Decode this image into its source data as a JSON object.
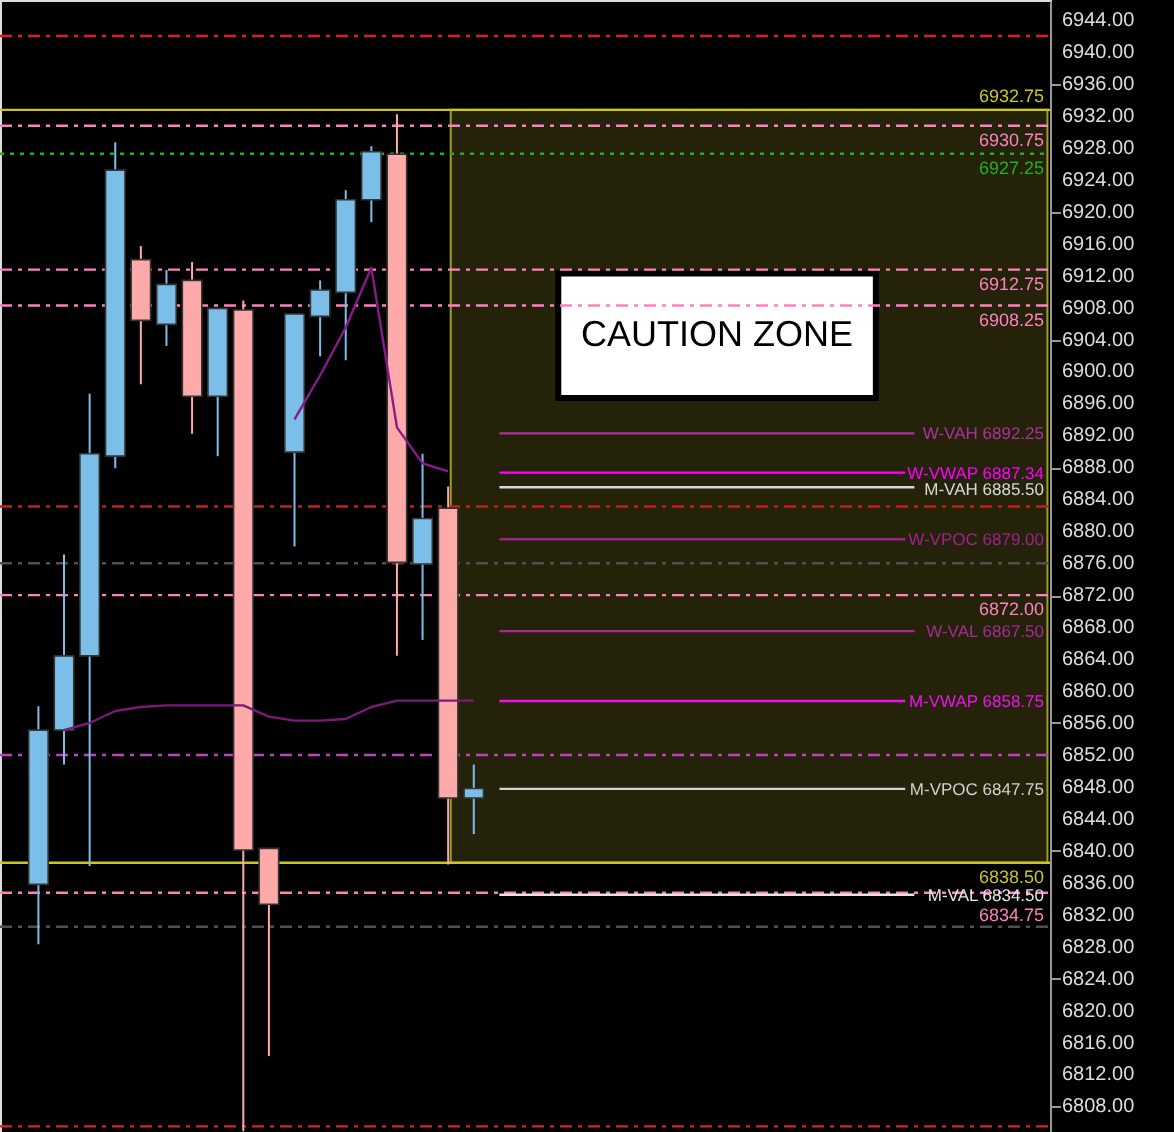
{
  "chart_data": {
    "type": "candlestick",
    "categories": [
      null,
      null,
      null,
      null,
      null,
      null,
      null,
      null,
      null,
      null,
      null,
      null,
      null,
      null,
      null,
      null,
      null,
      null,
      null,
      null,
      null,
      null,
      null,
      null,
      null,
      null,
      null,
      null,
      null,
      null,
      null,
      null,
      null,
      null,
      null,
      null,
      null,
      null,
      null,
      null,
      null
    ],
    "ohlc": [
      null,
      [
        6835.8,
        6858.1,
        6828.3,
        6855.1
      ],
      [
        6855.1,
        6877.1,
        6850.8,
        6864.4
      ],
      [
        6864.4,
        6897.2,
        6838.1,
        6889.7
      ],
      [
        6889.4,
        6928.7,
        6887.9,
        6925.2
      ],
      [
        6914.0,
        6915.7,
        6898.4,
        6906.4
      ],
      [
        6905.9,
        6912.7,
        6903.2,
        6910.9
      ],
      [
        6911.4,
        6913.7,
        6892.2,
        6896.9
      ],
      [
        6896.9,
        6907.9,
        6889.4,
        6907.9
      ],
      [
        6907.7,
        6908.9,
        6804.9,
        6840.1
      ],
      [
        6840.3,
        6840.3,
        6814.3,
        6833.3
      ],
      [
        6889.9,
        6907.2,
        6878.1,
        6907.2
      ],
      [
        6906.9,
        6911.4,
        6901.9,
        6910.2
      ],
      [
        6909.9,
        6922.7,
        6901.4,
        6921.5
      ],
      [
        6921.5,
        6928.2,
        6918.7,
        6927.5
      ],
      [
        6927.2,
        6932.2,
        6864.4,
        6876.1
      ],
      [
        6875.9,
        6889.7,
        6866.4,
        6881.6
      ],
      [
        6882.9,
        6885.6,
        6838.3,
        6846.6
      ],
      [
        6846.6,
        6850.8,
        6842.1,
        6847.8
      ],
      null,
      null,
      null,
      null,
      null,
      null,
      null,
      null,
      null,
      null,
      null,
      null,
      null,
      null,
      null,
      null,
      null,
      null,
      null,
      null,
      null,
      null
    ],
    "colors": [
      null,
      "#7bbfe8",
      "#7bbfe8",
      "#7bbfe8",
      "#7bbfe8",
      "#ffaaaa",
      "#7bbfe8",
      "#ffaaaa",
      "#7bbfe8",
      "#ffaaaa",
      "#ffaaaa",
      "#7bbfe8",
      "#7bbfe8",
      "#7bbfe8",
      "#7bbfe8",
      "#ffaaaa",
      "#7bbfe8",
      "#ffaaaa",
      "#7bbfe8",
      null,
      null,
      null,
      null,
      null,
      null,
      null,
      null,
      null,
      null,
      null,
      null,
      null,
      null,
      null,
      null,
      null,
      null,
      null,
      null,
      null,
      null
    ],
    "series": [
      {
        "type": "line",
        "color": "#7a1a7a",
        "values": [
          null,
          null,
          6855.1,
          6856.0,
          6857.5,
          6858.0,
          6858.2,
          6858.2,
          6858.2,
          6858.2,
          6856.8,
          6856.3,
          6856.3,
          6856.5,
          6858.0,
          6858.8,
          6858.8,
          6858.8,
          6858.8,
          null,
          null,
          null,
          null,
          null,
          null,
          null,
          null,
          null,
          null,
          null,
          null,
          null,
          null,
          null,
          null,
          null,
          null,
          null,
          null,
          null,
          null
        ]
      },
      {
        "type": "line",
        "color": "#8a1a8a",
        "values": [
          null,
          null,
          null,
          null,
          null,
          null,
          null,
          null,
          null,
          null,
          null,
          6894.0,
          6899.5,
          6905.5,
          6913.0,
          6893.0,
          6888.5,
          6887.5,
          null,
          null,
          null,
          null,
          null,
          null,
          null,
          null,
          null,
          null,
          null,
          null,
          null,
          null,
          null,
          null,
          null,
          null,
          null,
          null,
          null,
          null,
          null
        ]
      }
    ],
    "ylim": [
      6804.8,
      6946.5
    ],
    "yticks": [
      {
        "value": 6808,
        "label": "6808.00"
      },
      {
        "value": 6812,
        "label": "6812.00"
      },
      {
        "value": 6816,
        "label": "6816.00"
      },
      {
        "value": 6820,
        "label": "6820.00"
      },
      {
        "value": 6824,
        "label": "6824.00"
      },
      {
        "value": 6828,
        "label": "6828.00"
      },
      {
        "value": 6832,
        "label": "6832.00"
      },
      {
        "value": 6836,
        "label": "6836.00"
      },
      {
        "value": 6840,
        "label": "6840.00"
      },
      {
        "value": 6844,
        "label": "6844.00"
      },
      {
        "value": 6848,
        "label": "6848.00"
      },
      {
        "value": 6852,
        "label": "6852.00"
      },
      {
        "value": 6856,
        "label": "6856.00"
      },
      {
        "value": 6860,
        "label": "6860.00"
      },
      {
        "value": 6864,
        "label": "6864.00"
      },
      {
        "value": 6868,
        "label": "6868.00"
      },
      {
        "value": 6872,
        "label": "6872.00"
      },
      {
        "value": 6876,
        "label": "6876.00"
      },
      {
        "value": 6880,
        "label": "6880.00"
      },
      {
        "value": 6884,
        "label": "6884.00"
      },
      {
        "value": 6888,
        "label": "6888.00"
      },
      {
        "value": 6892,
        "label": "6892.00"
      },
      {
        "value": 6896,
        "label": "6896.00"
      },
      {
        "value": 6900,
        "label": "6900.00"
      },
      {
        "value": 6904,
        "label": "6904.00"
      },
      {
        "value": 6908,
        "label": "6908.00"
      },
      {
        "value": 6912,
        "label": "6912.00"
      },
      {
        "value": 6916,
        "label": "6916.00"
      },
      {
        "value": 6920,
        "label": "6920.00"
      },
      {
        "value": 6924,
        "label": "6924.00"
      },
      {
        "value": 6928,
        "label": "6928.00"
      },
      {
        "value": 6932,
        "label": "6932.00"
      },
      {
        "value": 6936,
        "label": "6936.00"
      },
      {
        "value": 6940,
        "label": "6940.00"
      },
      {
        "value": 6944,
        "label": "6944.00"
      }
    ],
    "tick_labels": "y",
    "grid": false,
    "bands": [
      {
        "axis": "y",
        "from": 6838.5,
        "to": 6932.75,
        "label": "CAUTION ZONE",
        "color": "#24230a"
      }
    ],
    "ref_lines": [
      {
        "axis": "y",
        "value": 6942.0,
        "label": null,
        "color": "#e02020",
        "line_style": "dashed"
      },
      {
        "axis": "y",
        "value": 6932.75,
        "label": "6932.75",
        "color": "#c8c820",
        "line_style": "solid"
      },
      {
        "axis": "y",
        "value": 6930.75,
        "label": "6930.75",
        "color": "#ff80c0",
        "line_style": "dashed"
      },
      {
        "axis": "y",
        "value": 6927.25,
        "label": "6927.25",
        "color": "#20b020",
        "line_style": "dotted"
      },
      {
        "axis": "y",
        "value": 6912.75,
        "label": "6912.75",
        "color": "#ff80c0",
        "line_style": "dashed"
      },
      {
        "axis": "y",
        "value": 6908.25,
        "label": "6908.25",
        "color": "#ff80c0",
        "line_style": "dashed"
      },
      {
        "axis": "y",
        "value": 6883.1,
        "label": null,
        "color": "#c02020",
        "line_style": "dashed"
      },
      {
        "axis": "y",
        "value": 6876.0,
        "label": null,
        "color": "#505050",
        "line_style": "dashed"
      },
      {
        "axis": "y",
        "value": 6872.0,
        "label": "6872.00",
        "color": "#ff80c0",
        "line_style": "dashed"
      },
      {
        "axis": "y",
        "value": 6852.0,
        "label": null,
        "color": "#c040c0",
        "line_style": "dashed"
      },
      {
        "axis": "y",
        "value": 6838.5,
        "label": "6838.50",
        "color": "#c8c820",
        "line_style": "solid"
      },
      {
        "axis": "y",
        "value": 6834.75,
        "label": "6834.75",
        "color": "#ff80c0",
        "line_style": "dashed"
      },
      {
        "axis": "y",
        "value": 6830.5,
        "label": null,
        "color": "#505050",
        "line_style": "dashed"
      },
      {
        "axis": "y",
        "value": 6805.5,
        "label": null,
        "color": "#e02020",
        "line_style": "dashed"
      },
      {
        "axis": "y",
        "value": 6892.25,
        "label": "W-VAH 6892.25",
        "color": "#b030a0",
        "line_style": "solid"
      },
      {
        "axis": "y",
        "value": 6887.34,
        "label": "W-VWAP 6887.34",
        "color": "#ff00ff",
        "line_style": "solid"
      },
      {
        "axis": "y",
        "value": 6885.5,
        "label": "M-VAH 6885.50",
        "color": "#d8d8d8",
        "line_style": "solid"
      },
      {
        "axis": "y",
        "value": 6879.0,
        "label": "W-VPOC 6879.00",
        "color": "#a02090",
        "line_style": "solid"
      },
      {
        "axis": "y",
        "value": 6867.5,
        "label": "W-VAL 6867.50",
        "color": "#a82898",
        "line_style": "solid"
      },
      {
        "axis": "y",
        "value": 6858.75,
        "label": "M-VWAP 6858.75",
        "color": "#f010f0",
        "line_style": "solid"
      },
      {
        "axis": "y",
        "value": 6847.75,
        "label": "M-VPOC 6847.75",
        "color": "#d0d0d0",
        "line_style": "solid"
      },
      {
        "axis": "y",
        "value": 6834.5,
        "label": "M-VAL 6834.50",
        "color": "#e4e4e4",
        "line_style": "solid"
      }
    ]
  }
}
